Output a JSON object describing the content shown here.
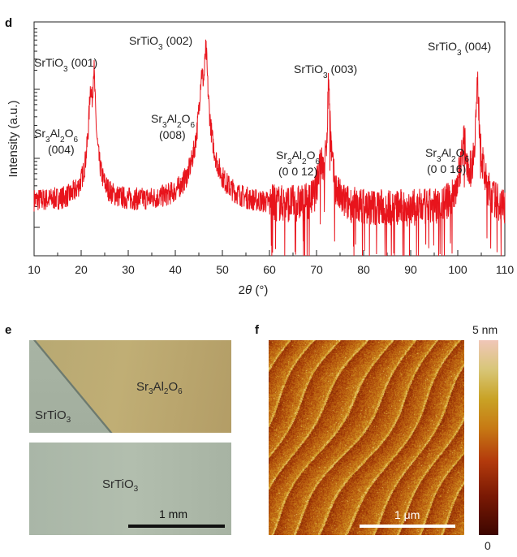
{
  "panels": {
    "d": "d",
    "e": "e",
    "f": "f"
  },
  "chart_data": {
    "type": "line",
    "title": "",
    "xlabel_prefix": "2",
    "xlabel_symbol": "θ",
    "xlabel_suffix": " (°)",
    "ylabel": "Intensity (a.u.)",
    "xlim": [
      10,
      110
    ],
    "xticks": [
      10,
      20,
      30,
      40,
      50,
      60,
      70,
      80,
      90,
      100,
      110
    ],
    "y_scale": "log",
    "line_color": "#e8141c",
    "series": [
      {
        "peaks": [
          {
            "x": 22.0,
            "label": "Sr3Al2O6 (004)"
          },
          {
            "x": 22.7,
            "label": "SrTiO3 (001)"
          },
          {
            "x": 45.6,
            "label": "Sr3Al2O6 (008)"
          },
          {
            "x": 46.5,
            "label": "SrTiO3 (002)"
          },
          {
            "x": 70.8,
            "label": "Sr3Al2O6 (0 0 12)"
          },
          {
            "x": 72.6,
            "label": "SrTiO3 (003)"
          },
          {
            "x": 101.3,
            "label": "Sr3Al2O6 (0 0 16)"
          },
          {
            "x": 104.2,
            "label": "SrTiO3 (004)"
          }
        ]
      }
    ],
    "annotations": {
      "sto001": {
        "pre": "SrTiO",
        "sub": "3",
        "post": " (001)"
      },
      "sto002": {
        "pre": "SrTiO",
        "sub": "3",
        "post": " (002)"
      },
      "sto003": {
        "pre": "SrTiO",
        "sub": "3",
        "post": " (003)"
      },
      "sto004": {
        "pre": "SrTiO",
        "sub": "3",
        "post": " (004)"
      },
      "sao004": {
        "index": "(004)"
      },
      "sao008": {
        "index": "(008)"
      },
      "sao0012": {
        "index": "(0 0 12)"
      },
      "sao0016": {
        "index": "(0 0 16)"
      },
      "sao_parts": [
        "Sr",
        "3",
        "Al",
        "2",
        "O",
        "6"
      ]
    }
  },
  "panel_e": {
    "top_label": {
      "parts": [
        "Sr",
        "3",
        "Al",
        "2",
        "O",
        "6"
      ]
    },
    "top_substrate_label": {
      "pre": "SrTiO",
      "sub": "3"
    },
    "bottom_label": {
      "pre": "SrTiO",
      "sub": "3"
    },
    "scale_bar_label": "1 mm"
  },
  "panel_f": {
    "scale_bar_label": "1 μm",
    "colorbar_max": "5 nm",
    "colorbar_min": "0"
  }
}
